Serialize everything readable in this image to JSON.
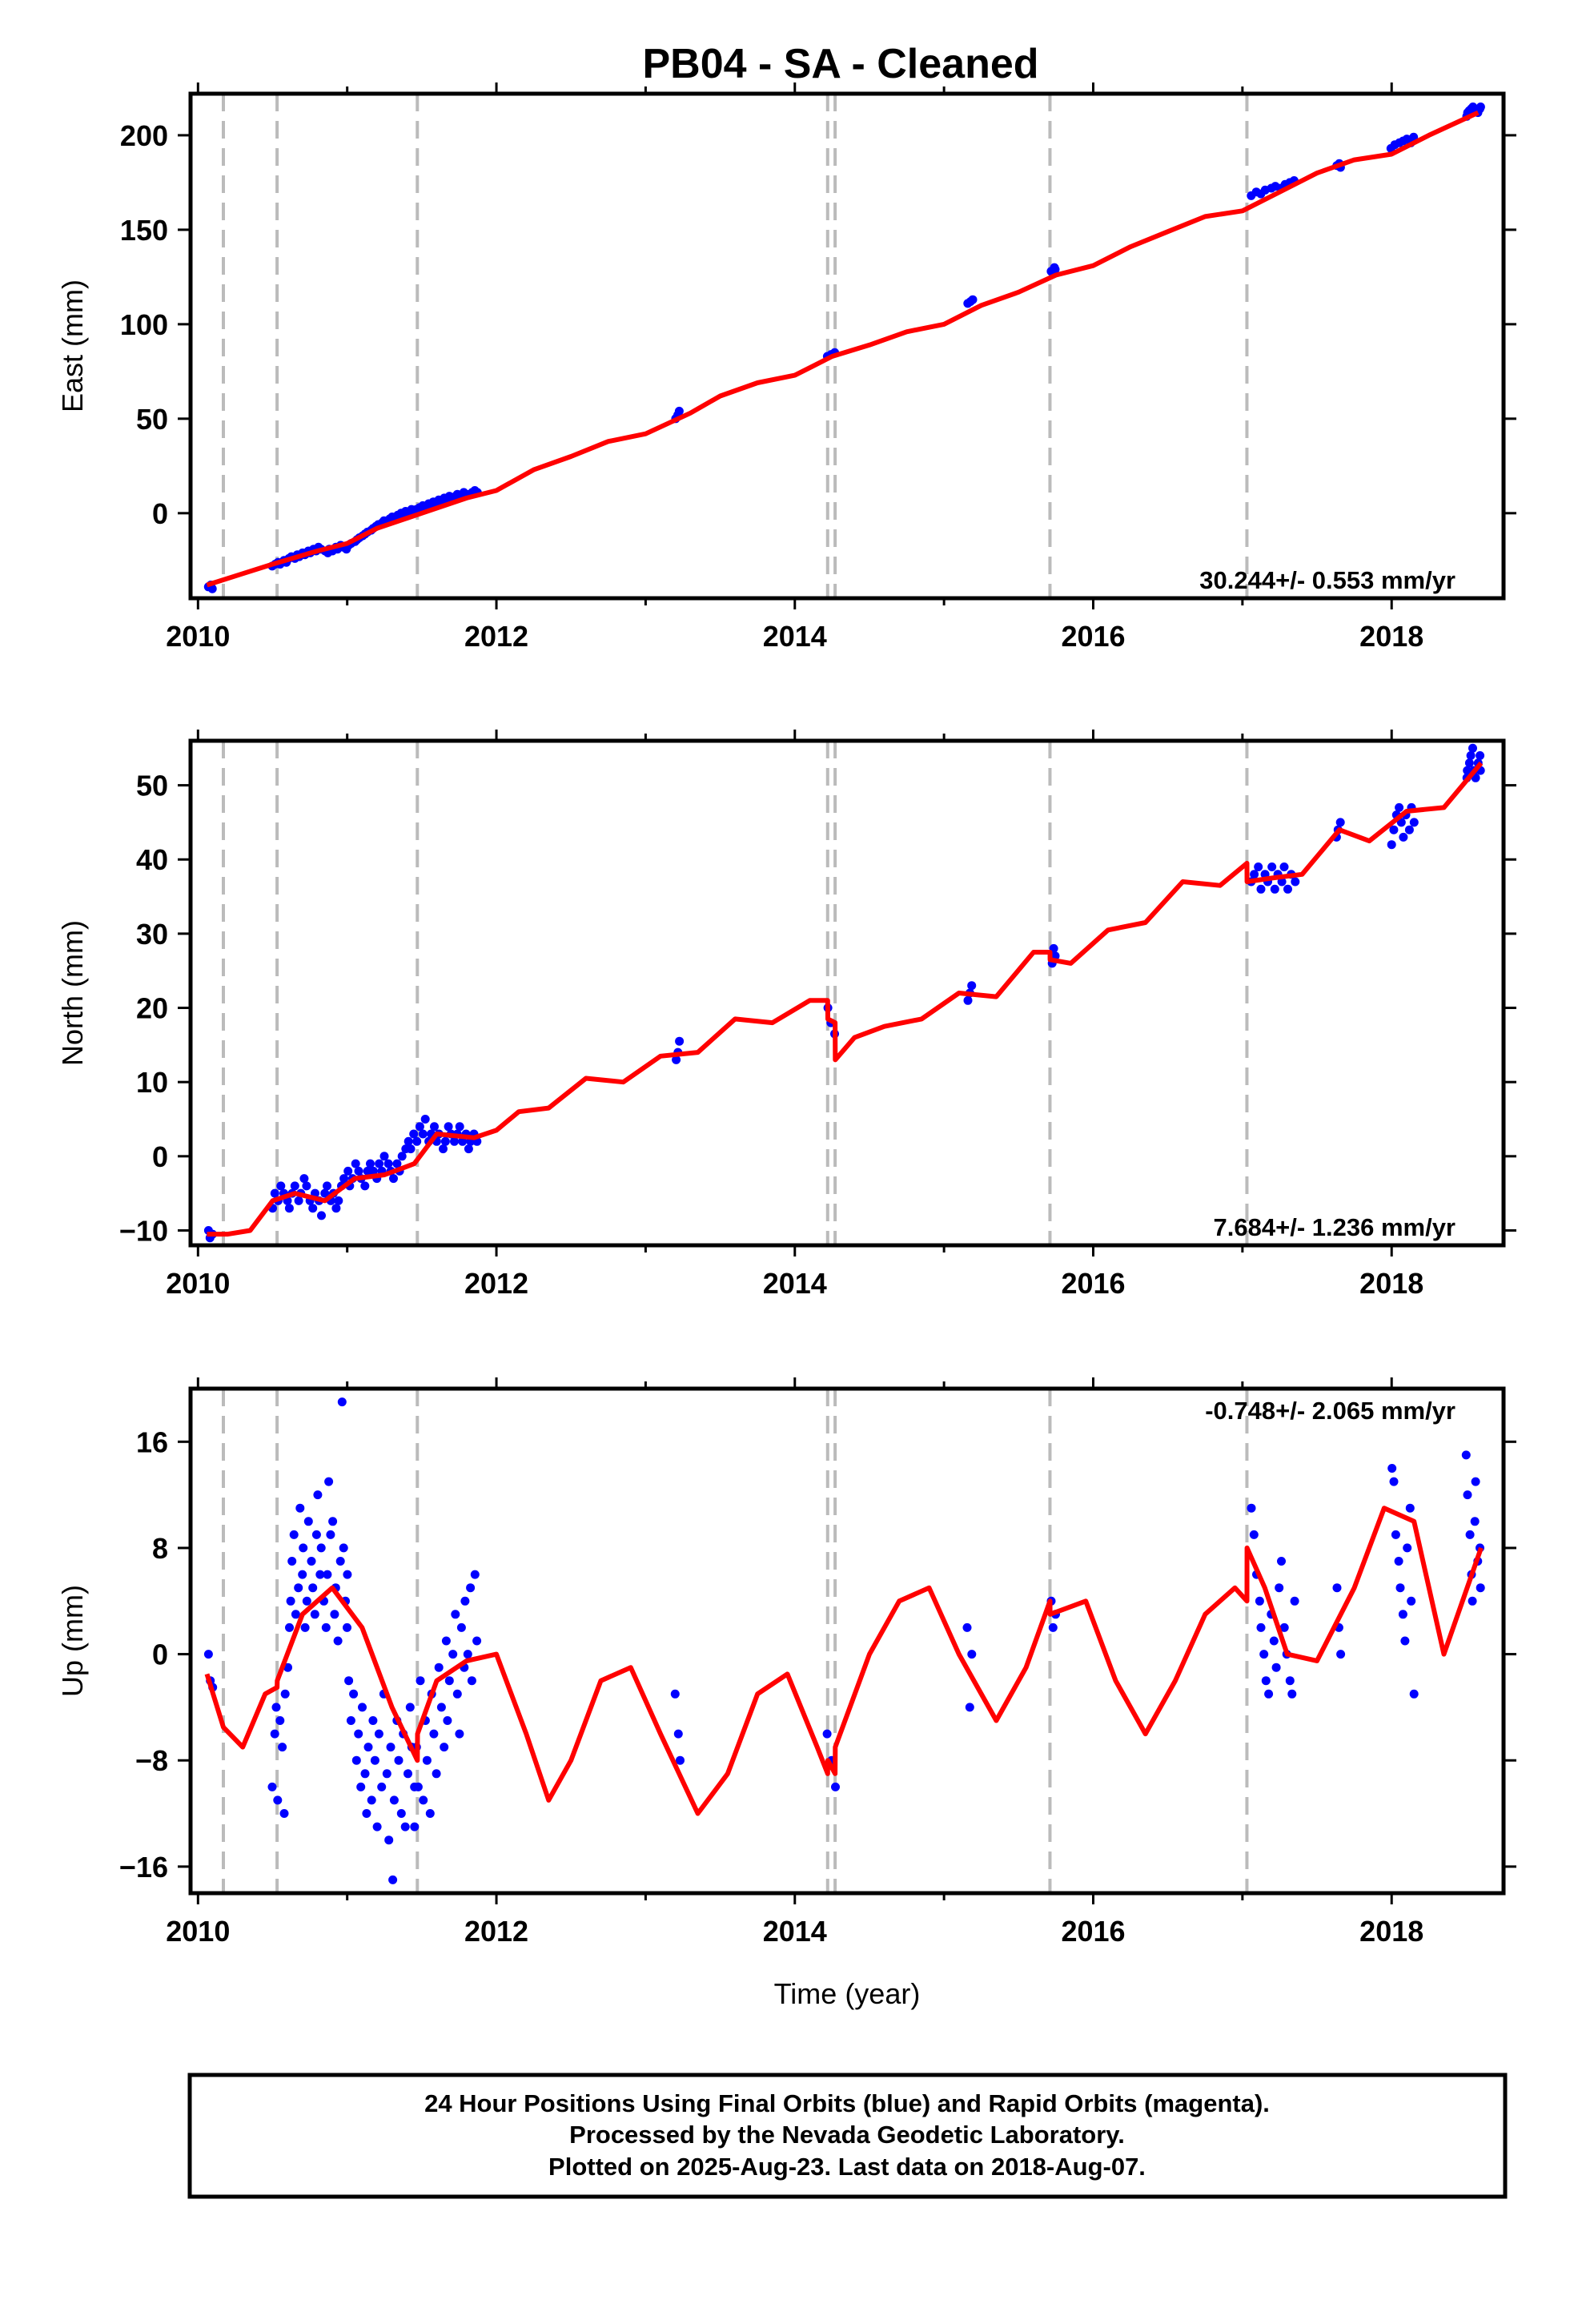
{
  "title": "PB04  - SA - Cleaned",
  "footer": {
    "lines": [
      "24 Hour Positions Using Final Orbits (blue) and Rapid Orbits (magenta).",
      "Processed by the Nevada Geodetic Laboratory.",
      "Plotted on 2025-Aug-23. Last data on 2018-Aug-07."
    ]
  },
  "colors": {
    "data_points": "#0000ff",
    "model_fit": "#ff0000",
    "event_lines": "#bbbbbb",
    "frame": "#000000"
  },
  "chart_data": [
    {
      "type": "scatter",
      "id": "east",
      "ylabel": "East (mm)",
      "xlabel": "",
      "xlim": [
        2009.95,
        2018.75
      ],
      "ylim": [
        -45,
        222
      ],
      "xticks": [
        2010,
        2012,
        2014,
        2016,
        2018
      ],
      "yticks": [
        0,
        50,
        100,
        150,
        200
      ],
      "rate_label": "30.244+/- 0.553 mm/yr",
      "grid": false,
      "event_lines": [
        2010.17,
        2010.53,
        2011.47,
        2014.22,
        2014.27,
        2015.71,
        2017.03
      ],
      "model": {
        "x": [
          2010.06,
          2010.3,
          2010.5,
          2010.8,
          2011.0,
          2011.2,
          2011.5,
          2011.8,
          2012.0,
          2012.25,
          2012.5,
          2012.75,
          2013.0,
          2013.3,
          2013.5,
          2013.75,
          2014.0,
          2014.25,
          2014.5,
          2014.75,
          2015.0,
          2015.25,
          2015.5,
          2015.75,
          2016.0,
          2016.25,
          2016.5,
          2016.75,
          2017.0,
          2017.3,
          2017.5,
          2017.75,
          2018.0,
          2018.25,
          2018.58
        ],
        "y": [
          -38,
          -32,
          -27,
          -20,
          -16,
          -8,
          0,
          8,
          12,
          23,
          30,
          38,
          42,
          53,
          62,
          69,
          73,
          83,
          89,
          96,
          100,
          110,
          117,
          126,
          131,
          141,
          149,
          157,
          160,
          172,
          180,
          187,
          190,
          200,
          212
        ]
      },
      "point_groups": [
        {
          "x_start": 2010.07,
          "x_end": 2010.1,
          "y": [
            -39,
            -38,
            -40
          ]
        },
        {
          "x_start": 2010.5,
          "x_end": 2011.87,
          "y": [
            -28,
            -27,
            -26,
            -27,
            -25,
            -26,
            -24,
            -23,
            -24,
            -22,
            -23,
            -21,
            -22,
            -20,
            -21,
            -19,
            -20,
            -18,
            -19,
            -20,
            -21,
            -19,
            -20,
            -18,
            -19,
            -17,
            -18,
            -19,
            -17,
            -16,
            -15,
            -14,
            -13,
            -12,
            -11,
            -10,
            -9,
            -8,
            -7,
            -6,
            -5,
            -4,
            -4,
            -3,
            -2,
            -3,
            -1,
            0,
            -1,
            1,
            0,
            2,
            1,
            2,
            3,
            4,
            3,
            5,
            4,
            6,
            5,
            7,
            6,
            8,
            7,
            9,
            8,
            9,
            10,
            9,
            11,
            10,
            10,
            11,
            12,
            11
          ]
        },
        {
          "x_start": 2013.2,
          "x_end": 2013.23,
          "y": [
            50,
            52,
            54
          ]
        },
        {
          "x_start": 2014.22,
          "x_end": 2014.27,
          "y": [
            83,
            84,
            85
          ]
        },
        {
          "x_start": 2015.16,
          "x_end": 2015.19,
          "y": [
            111,
            112,
            113
          ]
        },
        {
          "x_start": 2015.72,
          "x_end": 2015.75,
          "y": [
            128,
            130,
            129
          ]
        },
        {
          "x_start": 2017.06,
          "x_end": 2017.35,
          "y": [
            168,
            170,
            169,
            171,
            172,
            173,
            172,
            174,
            175,
            176
          ]
        },
        {
          "x_start": 2017.63,
          "x_end": 2017.66,
          "y": [
            184,
            185,
            183
          ]
        },
        {
          "x_start": 2018.0,
          "x_end": 2018.15,
          "y": [
            193,
            195,
            196,
            197,
            198,
            196,
            199
          ]
        },
        {
          "x_start": 2018.5,
          "x_end": 2018.6,
          "y": [
            210,
            212,
            213,
            214,
            215,
            213,
            212,
            214,
            215
          ]
        }
      ]
    },
    {
      "type": "scatter",
      "id": "north",
      "ylabel": "North (mm)",
      "xlabel": "",
      "xlim": [
        2009.95,
        2018.75
      ],
      "ylim": [
        -12,
        56
      ],
      "xticks": [
        2010,
        2012,
        2014,
        2016,
        2018
      ],
      "yticks": [
        -10,
        0,
        10,
        20,
        30,
        40,
        50
      ],
      "rate_label": "7.684+/- 1.236 mm/yr",
      "grid": false,
      "event_lines": [
        2010.17,
        2010.53,
        2011.47,
        2014.22,
        2014.27,
        2015.71,
        2017.03
      ],
      "model": {
        "x": [
          2010.06,
          2010.2,
          2010.35,
          2010.5,
          2010.65,
          2010.85,
          2011.05,
          2011.25,
          2011.45,
          2011.6,
          2011.85,
          2012.0,
          2012.15,
          2012.35,
          2012.6,
          2012.85,
          2013.1,
          2013.35,
          2013.6,
          2013.85,
          2014.1,
          2014.22,
          2014.221,
          2014.27,
          2014.271,
          2014.4,
          2014.6,
          2014.85,
          2015.1,
          2015.35,
          2015.6,
          2015.71,
          2015.711,
          2015.85,
          2016.1,
          2016.35,
          2016.6,
          2016.85,
          2017.03,
          2017.031,
          2017.2,
          2017.4,
          2017.65,
          2017.85,
          2018.1,
          2018.35,
          2018.6
        ],
        "y": [
          -10.5,
          -10.5,
          -10,
          -6,
          -5,
          -6,
          -3,
          -2.5,
          -1,
          3,
          2.5,
          3.5,
          6,
          6.5,
          10.5,
          10,
          13.5,
          14,
          18.5,
          18,
          21,
          21,
          18.5,
          18,
          13,
          16,
          17.5,
          18.5,
          22,
          21.5,
          27.5,
          27.5,
          26.5,
          26,
          30.5,
          31.5,
          37,
          36.5,
          39.5,
          37,
          37.5,
          38,
          44,
          42.5,
          46.5,
          47,
          53
        ]
      },
      "point_groups": [
        {
          "x_start": 2010.07,
          "x_end": 2010.1,
          "y": [
            -10,
            -11,
            -10.5
          ]
        },
        {
          "x_start": 2010.5,
          "x_end": 2011.87,
          "y": [
            -7,
            -5,
            -6,
            -4,
            -5,
            -6,
            -7,
            -5,
            -4,
            -6,
            -5,
            -3,
            -4,
            -6,
            -7,
            -5,
            -6,
            -8,
            -5,
            -4,
            -6,
            -5,
            -7,
            -6,
            -4,
            -3,
            -2,
            -4,
            -3,
            -1,
            -2,
            -3,
            -4,
            -2,
            -1,
            -2,
            -3,
            -1,
            -2,
            0,
            -1,
            -2,
            -3,
            -1,
            -2,
            0,
            1,
            2,
            1,
            3,
            2,
            4,
            3,
            5,
            2,
            3,
            4,
            2,
            3,
            1,
            2,
            4,
            3,
            2,
            3,
            4,
            2,
            3,
            1,
            2,
            3,
            2
          ]
        },
        {
          "x_start": 2013.2,
          "x_end": 2013.23,
          "y": [
            13,
            14,
            15.5
          ]
        },
        {
          "x_start": 2014.22,
          "x_end": 2014.27,
          "y": [
            20,
            18,
            16.5
          ]
        },
        {
          "x_start": 2015.16,
          "x_end": 2015.19,
          "y": [
            21,
            22,
            23
          ]
        },
        {
          "x_start": 2015.72,
          "x_end": 2015.75,
          "y": [
            26,
            28,
            27
          ]
        },
        {
          "x_start": 2017.06,
          "x_end": 2017.35,
          "y": [
            37,
            38,
            39,
            36,
            38,
            37,
            39,
            36,
            38,
            37,
            39,
            36,
            38,
            37
          ]
        },
        {
          "x_start": 2017.63,
          "x_end": 2017.66,
          "y": [
            43,
            44,
            45
          ]
        },
        {
          "x_start": 2018.0,
          "x_end": 2018.15,
          "y": [
            42,
            44,
            46,
            47,
            45,
            43,
            46,
            44,
            47,
            45
          ]
        },
        {
          "x_start": 2018.5,
          "x_end": 2018.6,
          "y": [
            51,
            52,
            53,
            54,
            55,
            52,
            51,
            53,
            54,
            52
          ]
        }
      ]
    },
    {
      "type": "scatter",
      "id": "up",
      "ylabel": "Up (mm)",
      "xlabel": "Time (year)",
      "xlim": [
        2009.95,
        2018.75
      ],
      "ylim": [
        -18,
        20
      ],
      "xticks": [
        2010,
        2012,
        2014,
        2016,
        2018
      ],
      "yticks": [
        -16,
        -8,
        0,
        8,
        16
      ],
      "rate_label": "-0.748+/- 2.065 mm/yr",
      "grid": false,
      "event_lines": [
        2010.17,
        2010.53,
        2011.47,
        2014.22,
        2014.27,
        2015.71,
        2017.03
      ],
      "model": {
        "x": [
          2010.06,
          2010.17,
          2010.3,
          2010.45,
          2010.53,
          2010.531,
          2010.7,
          2010.9,
          2011.1,
          2011.3,
          2011.47,
          2011.471,
          2011.6,
          2011.8,
          2012.0,
          2012.2,
          2012.35,
          2012.5,
          2012.7,
          2012.9,
          2013.1,
          2013.35,
          2013.55,
          2013.75,
          2013.95,
          2014.15,
          2014.22,
          2014.221,
          2014.27,
          2014.271,
          2014.5,
          2014.7,
          2014.9,
          2015.1,
          2015.35,
          2015.55,
          2015.71,
          2015.711,
          2015.95,
          2016.15,
          2016.35,
          2016.55,
          2016.75,
          2016.95,
          2017.03,
          2017.031,
          2017.15,
          2017.3,
          2017.5,
          2017.75,
          2017.95,
          2018.15,
          2018.35,
          2018.6
        ],
        "y": [
          -1.5,
          -5.5,
          -7,
          -3,
          -2.5,
          -2,
          3,
          5,
          2,
          -4,
          -8,
          -6,
          -2,
          -0.5,
          0,
          -6,
          -11,
          -8,
          -2,
          -1,
          -6,
          -12,
          -9,
          -3,
          -1.5,
          -7,
          -9,
          -8,
          -9,
          -7,
          0,
          4,
          5,
          0,
          -5,
          -1,
          4,
          3,
          4,
          -2,
          -6,
          -2,
          3,
          5,
          4,
          8,
          5,
          0,
          -0.5,
          5,
          11,
          10,
          0,
          8
        ]
      },
      "point_groups": [
        {
          "x_start": 2010.07,
          "x_end": 2010.1,
          "y": [
            0,
            -2,
            -2.5
          ]
        },
        {
          "x_start": 2010.5,
          "x_end": 2011.0,
          "y": [
            -10,
            -6,
            -4,
            -11,
            -5,
            -7,
            -12,
            -3,
            -1,
            2,
            4,
            7,
            9,
            3,
            5,
            11,
            6,
            8,
            2,
            4,
            10,
            7,
            5,
            3,
            9,
            12,
            6,
            8,
            4,
            2,
            6,
            13,
            9,
            10,
            3,
            5,
            1,
            7,
            19,
            8,
            4,
            6
          ]
        },
        {
          "x_start": 2011.0,
          "x_end": 2011.45,
          "y": [
            2,
            -2,
            -5,
            -3,
            -8,
            -6,
            -10,
            -4,
            -9,
            -12,
            -7,
            -11,
            -5,
            -8,
            -13,
            -6,
            -10,
            -3,
            -9,
            -14,
            -7,
            -17,
            -11,
            -5,
            -8,
            -12,
            -6,
            -13,
            -9,
            -4,
            -7,
            -10
          ]
        },
        {
          "x_start": 2011.45,
          "x_end": 2011.87,
          "y": [
            -13,
            -7,
            -10,
            -2,
            -11,
            -5,
            -8,
            -12,
            -3,
            -6,
            -9,
            -1,
            -4,
            -7,
            1,
            -5,
            -2,
            0,
            3,
            -3,
            -6,
            2,
            -1,
            4,
            0,
            5,
            -2,
            6,
            1
          ]
        },
        {
          "x_start": 2013.2,
          "x_end": 2013.23,
          "y": [
            -3,
            -6,
            -8
          ]
        },
        {
          "x_start": 2014.22,
          "x_end": 2014.27,
          "y": [
            -6,
            -8,
            -10
          ]
        },
        {
          "x_start": 2015.16,
          "x_end": 2015.19,
          "y": [
            2,
            -4,
            0
          ]
        },
        {
          "x_start": 2015.72,
          "x_end": 2015.75,
          "y": [
            4,
            2,
            3
          ]
        },
        {
          "x_start": 2017.06,
          "x_end": 2017.35,
          "y": [
            11,
            9,
            6,
            4,
            2,
            0,
            -2,
            -3,
            3,
            1,
            -1,
            5,
            7,
            2,
            0,
            -2,
            -3,
            4
          ]
        },
        {
          "x_start": 2017.63,
          "x_end": 2017.66,
          "y": [
            5,
            2,
            0
          ]
        },
        {
          "x_start": 2018.0,
          "x_end": 2018.15,
          "y": [
            14,
            13,
            9,
            7,
            5,
            3,
            1,
            8,
            11,
            4,
            -3
          ]
        },
        {
          "x_start": 2018.5,
          "x_end": 2018.6,
          "y": [
            15,
            12,
            9,
            6,
            4,
            10,
            13,
            7,
            8,
            5
          ]
        }
      ]
    }
  ]
}
